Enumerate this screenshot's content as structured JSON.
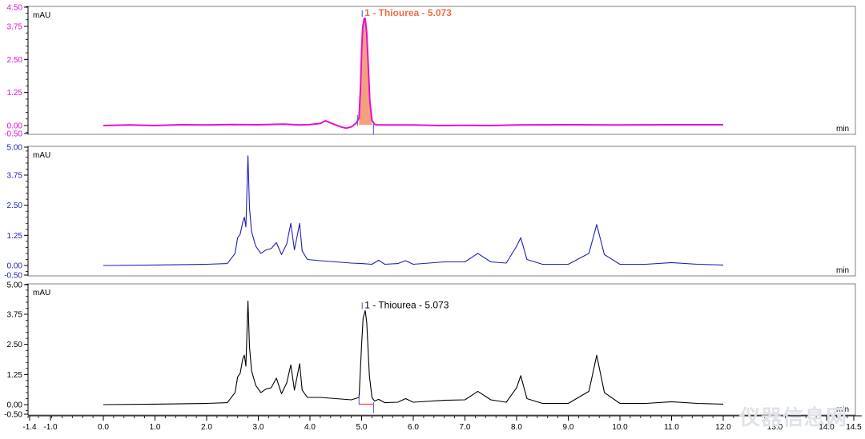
{
  "watermark": "仪器信息网",
  "colors": {
    "panel1": "#e60fd2",
    "panel1_fill": "#f3a07c",
    "panel1_label": "#ee6d4a",
    "panel2": "#1f1fb4",
    "panel3": "#000000",
    "axis": "#000000",
    "frame": "#808080",
    "yticks1": "#e60fd2",
    "yticks2": "#1f1fb4",
    "yticks3": "#000000",
    "integration": "#ff2020",
    "marker": "#3a55d8"
  },
  "chart_data": [
    {
      "type": "line",
      "panel": "top",
      "ylabel": "mAU",
      "xunit": "min",
      "ylim": [
        -0.5,
        4.5
      ],
      "yticks": [
        "4.50",
        "3.75",
        "2.50",
        "1.25",
        "0.00",
        "-0.50"
      ],
      "xlim": [
        -1.4,
        14.5
      ],
      "peaks": [
        {
          "label": "1 - Thiourea - 5.073",
          "rt": 5.073,
          "height": 4.05,
          "start": 4.92,
          "end": 5.23,
          "filled": true
        }
      ],
      "trace": {
        "x": [
          0.0,
          0.5,
          1.0,
          1.5,
          2.0,
          2.5,
          3.0,
          3.5,
          3.8,
          4.0,
          4.2,
          4.3,
          4.4,
          4.5,
          4.6,
          4.7,
          4.8,
          4.9,
          4.95,
          4.98,
          5.0,
          5.02,
          5.05,
          5.07,
          5.1,
          5.13,
          5.16,
          5.2,
          5.25,
          5.3,
          5.5,
          6.0,
          6.5,
          7.0,
          7.5,
          8.0,
          9.0,
          10.0,
          11.0,
          12.0
        ],
        "y": [
          0.0,
          0.02,
          0.0,
          0.03,
          0.02,
          0.04,
          0.03,
          0.05,
          0.02,
          0.04,
          0.08,
          0.18,
          0.1,
          0.02,
          -0.05,
          -0.1,
          -0.05,
          0.1,
          0.3,
          1.5,
          2.8,
          3.7,
          4.05,
          4.05,
          3.5,
          2.2,
          0.9,
          0.2,
          0.05,
          0.02,
          0.02,
          0.02,
          0.0,
          0.01,
          0.0,
          0.02,
          0.03,
          0.02,
          0.03,
          0.03
        ]
      }
    },
    {
      "type": "line",
      "panel": "middle",
      "ylabel": "mAU",
      "xunit": "min",
      "ylim": [
        -0.5,
        5.0
      ],
      "yticks": [
        "5.00",
        "3.75",
        "2.50",
        "1.25",
        "0.00",
        "-0.50"
      ],
      "xlim": [
        -1.4,
        14.5
      ],
      "peaks": [],
      "trace": {
        "x": [
          0.0,
          1.0,
          2.0,
          2.4,
          2.55,
          2.6,
          2.65,
          2.7,
          2.73,
          2.76,
          2.8,
          2.83,
          2.87,
          2.95,
          3.05,
          3.15,
          3.25,
          3.35,
          3.45,
          3.55,
          3.63,
          3.7,
          3.75,
          3.8,
          3.85,
          3.95,
          4.2,
          4.5,
          4.8,
          5.0,
          5.2,
          5.33,
          5.45,
          5.7,
          5.85,
          6.0,
          6.6,
          7.0,
          7.25,
          7.5,
          7.8,
          8.0,
          8.08,
          8.2,
          8.5,
          9.0,
          9.4,
          9.55,
          9.7,
          10.0,
          10.5,
          11.0,
          11.5,
          12.0
        ],
        "y": [
          0.0,
          0.02,
          0.05,
          0.08,
          0.5,
          1.15,
          1.3,
          1.8,
          2.0,
          1.6,
          4.55,
          2.4,
          1.4,
          0.8,
          0.5,
          0.65,
          0.7,
          0.95,
          0.45,
          0.9,
          1.75,
          0.65,
          1.2,
          1.75,
          0.6,
          0.25,
          0.2,
          0.15,
          0.1,
          0.08,
          0.05,
          0.22,
          0.05,
          0.08,
          0.2,
          0.05,
          0.15,
          0.15,
          0.5,
          0.15,
          0.1,
          0.8,
          1.15,
          0.25,
          0.05,
          0.05,
          0.5,
          1.7,
          0.45,
          0.05,
          0.05,
          0.12,
          0.05,
          0.02
        ]
      }
    },
    {
      "type": "line",
      "panel": "bottom",
      "ylabel": "mAU",
      "xunit": "min",
      "ylim": [
        -0.5,
        5.0
      ],
      "yticks": [
        "5.00",
        "3.75",
        "2.50",
        "1.25",
        "0.00",
        "-0.50"
      ],
      "xlim": [
        -1.4,
        14.5
      ],
      "xticks": [
        "-1.4",
        "-1.0",
        "0.0",
        "1.0",
        "2.0",
        "3.0",
        "4.0",
        "5.0",
        "6.0",
        "7.0",
        "8.0",
        "9.0",
        "10.0",
        "11.0",
        "12.0",
        "13.0",
        "14.0",
        "14.5"
      ],
      "peaks": [
        {
          "label": "1 - Thiourea - 5.073",
          "rt": 5.073,
          "height": 3.9,
          "start": 4.95,
          "end": 5.23,
          "filled": false
        }
      ],
      "trace": {
        "x": [
          0.0,
          1.0,
          2.0,
          2.4,
          2.55,
          2.6,
          2.65,
          2.7,
          2.73,
          2.76,
          2.8,
          2.83,
          2.87,
          2.95,
          3.05,
          3.15,
          3.25,
          3.35,
          3.45,
          3.55,
          3.63,
          3.7,
          3.75,
          3.8,
          3.85,
          3.95,
          4.2,
          4.5,
          4.8,
          4.95,
          5.0,
          5.03,
          5.07,
          5.1,
          5.15,
          5.2,
          5.25,
          5.33,
          5.45,
          5.7,
          5.85,
          6.0,
          6.6,
          7.0,
          7.25,
          7.5,
          7.8,
          8.0,
          8.08,
          8.2,
          8.5,
          9.0,
          9.4,
          9.55,
          9.7,
          10.0,
          10.5,
          11.0,
          11.5,
          12.0
        ],
        "y": [
          0.0,
          0.02,
          0.05,
          0.08,
          0.5,
          1.15,
          1.3,
          1.9,
          2.05,
          1.6,
          4.3,
          2.4,
          1.4,
          0.8,
          0.5,
          0.65,
          0.7,
          1.1,
          0.45,
          0.9,
          1.65,
          0.6,
          1.15,
          1.7,
          0.6,
          0.3,
          0.3,
          0.25,
          0.2,
          0.3,
          2.5,
          3.6,
          3.9,
          3.4,
          1.2,
          0.3,
          0.15,
          0.22,
          0.08,
          0.1,
          0.25,
          0.1,
          0.18,
          0.2,
          0.55,
          0.2,
          0.1,
          0.7,
          1.2,
          0.25,
          0.05,
          0.05,
          0.55,
          2.05,
          0.5,
          0.05,
          0.05,
          0.12,
          0.05,
          0.02
        ]
      }
    }
  ]
}
